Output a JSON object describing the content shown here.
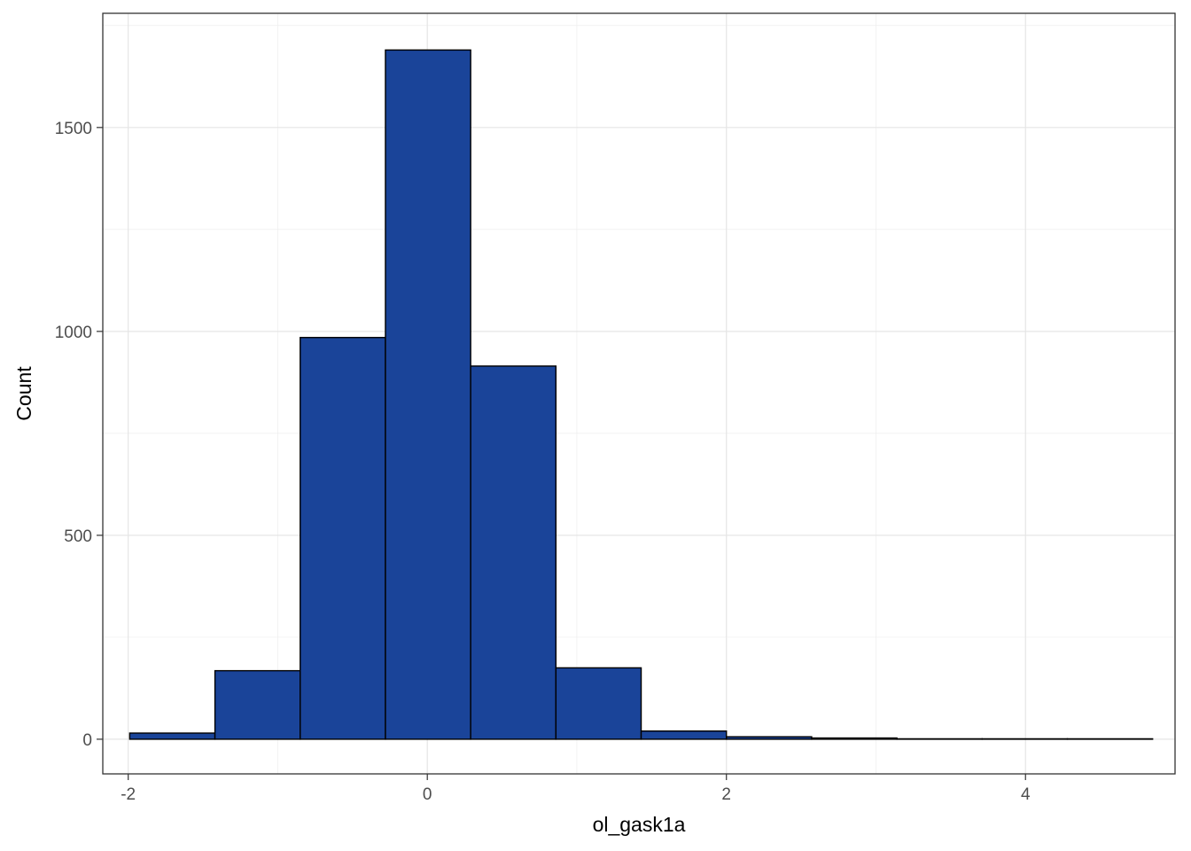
{
  "chart_data": {
    "type": "bar",
    "xlabel": "ol_gask1a",
    "ylabel": "Count",
    "xlim": [
      -2.17,
      5.0
    ],
    "ylim": [
      -85,
      1780
    ],
    "x_ticks": [
      -2,
      0,
      2,
      4
    ],
    "x_tick_labels": [
      "-2",
      "0",
      "2",
      "4"
    ],
    "y_ticks": [
      0,
      500,
      1000,
      1500
    ],
    "y_tick_labels": [
      "0",
      "500",
      "1000",
      "1500"
    ],
    "grid": true,
    "bin_edges": [
      -1.99,
      -1.42,
      -0.85,
      -0.28,
      0.29,
      0.86,
      1.43,
      2.0,
      2.57,
      3.14,
      3.71,
      4.28,
      4.85
    ],
    "counts": [
      15,
      168,
      985,
      1690,
      915,
      175,
      20,
      6,
      3,
      1,
      1,
      1
    ],
    "bar_color": "#1a4499",
    "bar_outline": "#000000"
  }
}
